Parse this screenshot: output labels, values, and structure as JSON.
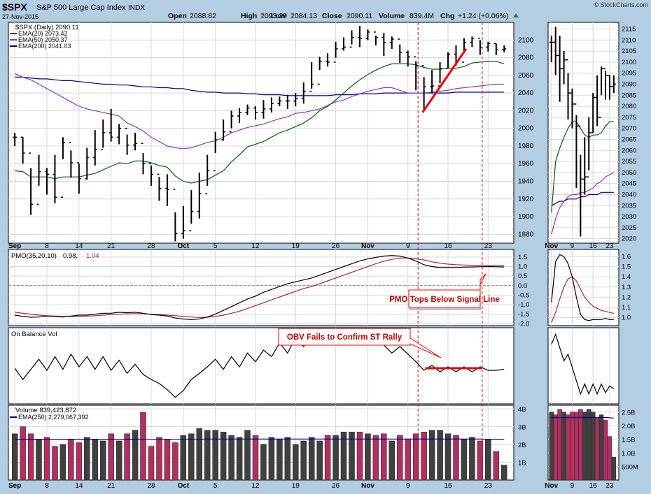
{
  "header": {
    "symbol": "$SPX",
    "name": "S&P 500 Large Cap Index",
    "exchange": "INDX",
    "date": "27-Nov-2015",
    "open_label": "Open",
    "open": "2088.82",
    "high_label": "High",
    "high": "2093.29",
    "low_label": "Low",
    "low": "2084.13",
    "close_label": "Close",
    "close": "2090.11",
    "volume_label": "Volume",
    "volume": "839.4M",
    "chg_label": "Chg",
    "chg": "+1.24 (+0.06%)",
    "watermark": "© StockCharts.com"
  },
  "legend": {
    "price": "$SPX (Daily) 2090.11",
    "ema20": "EMA(20) 2073.42",
    "ema50": "EMA(50) 2050.37",
    "ema200": "EMA(200) 2041.03",
    "pmo_name": "PMO(35,20,10)",
    "pmo_value": "0.98,",
    "pmo_signal": "1.04",
    "obv": "On Balance Vol",
    "volume": "Volume 839,423,872",
    "vol_ema": "EMA(250) 2,279,067,392"
  },
  "annotations": {
    "pmo": "PMO Tops Below Signal Line",
    "obv": "OBV Fails to Confirm ST Rally"
  },
  "colors": {
    "price": "#000000",
    "ema20": "#006400",
    "ema50": "#9932cc",
    "ema200": "#00008b",
    "pmo": "#000000",
    "pmo_signal": "#b22244",
    "vol_up": "#404040",
    "vol_down": "#b03060",
    "annotation_border": "#ff0000",
    "vertical_marker": "#e00000",
    "background": "#b3cde3"
  },
  "chart_data": [
    {
      "type": "ohlc",
      "panel": "price-daily",
      "x_tick_labels": [
        "Sep",
        "8",
        "14",
        "21",
        "28",
        "Oct",
        "5",
        "12",
        "19",
        "26",
        "Nov",
        "9",
        "16",
        "23"
      ],
      "y_ticks": [
        1880,
        1900,
        1920,
        1940,
        1960,
        1980,
        2000,
        2020,
        2040,
        2060,
        2080,
        2100
      ],
      "ylim": [
        1870,
        2120
      ],
      "close": [
        1990,
        1972,
        1914,
        1951,
        1948,
        1922,
        1984,
        1961,
        1943,
        1967,
        1976,
        1995,
        1990,
        2000,
        1981,
        1983,
        1960,
        1948,
        1932,
        1931,
        1881,
        1884,
        1906,
        1926,
        1952,
        1987,
        1996,
        2014,
        2018,
        2023,
        2018,
        2022,
        2028,
        2031,
        2031,
        2034,
        2042,
        2050,
        2076,
        2075,
        2090,
        2092,
        2103,
        2102,
        2109,
        2103,
        2097,
        2101,
        2086,
        2081,
        2071,
        2047,
        2048,
        2068,
        2084,
        2075,
        2097,
        2102,
        2092,
        2096,
        2089,
        2090
      ],
      "high": [
        1995,
        1990,
        1955,
        1970,
        1955,
        1970,
        1990,
        1975,
        1960,
        1978,
        1998,
        2010,
        2022,
        2005,
        1993,
        1995,
        1972,
        1958,
        1945,
        1948,
        1905,
        1912,
        1930,
        1950,
        1970,
        1996,
        2010,
        2020,
        2023,
        2027,
        2025,
        2032,
        2035,
        2036,
        2038,
        2040,
        2052,
        2075,
        2081,
        2085,
        2098,
        2103,
        2111,
        2116,
        2112,
        2105,
        2108,
        2104,
        2095,
        2088,
        2076,
        2058,
        2066,
        2075,
        2086,
        2094,
        2102,
        2104,
        2100,
        2098,
        2096,
        2094
      ],
      "low": [
        1980,
        1960,
        1902,
        1935,
        1925,
        1915,
        1965,
        1944,
        1926,
        1942,
        1958,
        1978,
        1985,
        1982,
        1970,
        1975,
        1948,
        1935,
        1918,
        1912,
        1872,
        1875,
        1892,
        1898,
        1935,
        1972,
        1986,
        2000,
        2006,
        2015,
        2010,
        2011,
        2018,
        2025,
        2022,
        2025,
        2028,
        2045,
        2066,
        2070,
        2080,
        2088,
        2095,
        2092,
        2100,
        2094,
        2082,
        2090,
        2074,
        2070,
        2043,
        2021,
        2040,
        2051,
        2068,
        2071,
        2085,
        2092,
        2083,
        2087,
        2083,
        2086
      ],
      "ema20": [
        1952,
        1951,
        1945,
        1945,
        1945,
        1943,
        1945,
        1945,
        1945,
        1947,
        1949,
        1953,
        1957,
        1961,
        1960,
        1963,
        1963,
        1961,
        1958,
        1956,
        1946,
        1940,
        1938,
        1940,
        1942,
        1947,
        1952,
        1962,
        1970,
        1979,
        1982,
        1985,
        1990,
        1995,
        1998,
        2002,
        2006,
        2012,
        2020,
        2025,
        2032,
        2040,
        2048,
        2055,
        2061,
        2066,
        2070,
        2073,
        2073,
        2073,
        2072,
        2069,
        2067,
        2067,
        2068,
        2068,
        2070,
        2074,
        2075,
        2076,
        2076,
        2073
      ],
      "ema50": [
        2062,
        2058,
        2055,
        2050,
        2045,
        2040,
        2035,
        2030,
        2025,
        2022,
        2020,
        2018,
        2016,
        2014,
        2006,
        2002,
        1997,
        1990,
        1985,
        1980,
        1978,
        1977,
        1978,
        1981,
        1984,
        1986,
        1990,
        1995,
        1998,
        2001,
        2003,
        2005,
        2008,
        2011,
        2013,
        2017,
        2018,
        2020,
        2022,
        2026,
        2030,
        2032,
        2036,
        2039,
        2042,
        2044,
        2046,
        2046,
        2043,
        2040,
        2040,
        2040,
        2041,
        2042,
        2043,
        2045,
        2046,
        2047,
        2048,
        2049,
        2050,
        2050
      ],
      "ema200": [
        2058,
        2058,
        2057,
        2056,
        2056,
        2055,
        2054,
        2054,
        2053,
        2052,
        2051,
        2050,
        2050,
        2049,
        2049,
        2048,
        2047,
        2047,
        2046,
        2046,
        2045,
        2045,
        2043,
        2042,
        2041,
        2041,
        2040,
        2040,
        2040,
        2039,
        2039,
        2038,
        2038,
        2038,
        2037,
        2037,
        2037,
        2037,
        2037,
        2037,
        2038,
        2038,
        2038,
        2039,
        2039,
        2039,
        2040,
        2040,
        2040,
        2040,
        2040,
        2040,
        2040,
        2040,
        2040,
        2041,
        2041,
        2041,
        2041,
        2041,
        2041,
        2041
      ]
    },
    {
      "type": "ohlc",
      "panel": "price-inset-nov",
      "x_tick_labels": [
        "Nov",
        "9",
        "16",
        "23"
      ],
      "y_ticks": [
        2020,
        2025,
        2030,
        2035,
        2040,
        2045,
        2050,
        2055,
        2060,
        2065,
        2070,
        2075,
        2080,
        2085,
        2090,
        2095,
        2100,
        2105,
        2110,
        2115
      ],
      "ylim": [
        2018,
        2118
      ],
      "close": [
        2109,
        2103,
        2097,
        2101,
        2086,
        2081,
        2071,
        2047,
        2048,
        2068,
        2084,
        2075,
        2097,
        2094,
        2089,
        2090
      ],
      "high": [
        2112,
        2116,
        2112,
        2105,
        2095,
        2088,
        2076,
        2058,
        2066,
        2075,
        2086,
        2094,
        2098,
        2096,
        2094,
        2094
      ],
      "low": [
        2100,
        2094,
        2082,
        2090,
        2074,
        2070,
        2043,
        2021,
        2040,
        2051,
        2068,
        2071,
        2085,
        2083,
        2083,
        2086
      ],
      "ema20": [
        2032,
        2055,
        2061,
        2066,
        2070,
        2073,
        2073,
        2070,
        2067,
        2066,
        2067,
        2067,
        2068,
        2071,
        2073,
        2073
      ],
      "ema50": [
        2022,
        2029,
        2034,
        2037,
        2039,
        2040,
        2040,
        2041,
        2041,
        2042,
        2043,
        2045,
        2046,
        2048,
        2049,
        2050
      ],
      "ema200": [
        2035,
        2036,
        2037,
        2037,
        2038,
        2038,
        2038,
        2039,
        2039,
        2040,
        2040,
        2040,
        2041,
        2041,
        2041,
        2041
      ]
    },
    {
      "type": "line",
      "panel": "pmo",
      "y_ticks": [
        -2.0,
        -1.5,
        -1.0,
        -0.5,
        0.0,
        0.5,
        1.0,
        1.5
      ],
      "ylim": [
        -2.1,
        1.9
      ],
      "series": [
        {
          "name": "PMO(35,20,10)",
          "values": [
            -1.55,
            -1.62,
            -1.66,
            -1.65,
            -1.6,
            -1.62,
            -1.65,
            -1.6,
            -1.55,
            -1.55,
            -1.5,
            -1.45,
            -1.45,
            -1.4,
            -1.42,
            -1.4,
            -1.45,
            -1.52,
            -1.55,
            -1.6,
            -1.7,
            -1.76,
            -1.78,
            -1.75,
            -1.65,
            -1.5,
            -1.3,
            -1.1,
            -0.9,
            -0.7,
            -0.55,
            -0.35,
            -0.2,
            -0.05,
            0.1,
            0.2,
            0.3,
            0.4,
            0.55,
            0.7,
            0.85,
            1.0,
            1.15,
            1.3,
            1.4,
            1.48,
            1.55,
            1.58,
            1.55,
            1.45,
            1.3,
            1.1,
            1.0,
            0.95,
            0.95,
            0.95,
            0.97,
            0.98,
            0.99,
            1.0,
            0.99,
            0.98
          ]
        },
        {
          "name": "Signal",
          "values": [
            -1.4,
            -1.45,
            -1.5,
            -1.55,
            -1.58,
            -1.6,
            -1.62,
            -1.62,
            -1.62,
            -1.6,
            -1.58,
            -1.55,
            -1.52,
            -1.5,
            -1.48,
            -1.47,
            -1.48,
            -1.5,
            -1.52,
            -1.55,
            -1.58,
            -1.62,
            -1.65,
            -1.67,
            -1.66,
            -1.62,
            -1.55,
            -1.45,
            -1.35,
            -1.2,
            -1.05,
            -0.9,
            -0.75,
            -0.6,
            -0.45,
            -0.3,
            -0.15,
            -0.05,
            0.1,
            0.25,
            0.4,
            0.55,
            0.7,
            0.85,
            1.0,
            1.15,
            1.28,
            1.38,
            1.45,
            1.45,
            1.42,
            1.35,
            1.25,
            1.18,
            1.13,
            1.1,
            1.08,
            1.07,
            1.06,
            1.05,
            1.04,
            1.04
          ]
        }
      ]
    },
    {
      "type": "line",
      "panel": "pmo-inset",
      "y_ticks": [
        1.0,
        1.1,
        1.2,
        1.3,
        1.4,
        1.5,
        1.6
      ],
      "ylim": [
        0.92,
        1.67
      ],
      "series": [
        {
          "name": "PMO(35,20,10)",
          "values": [
            1.15,
            1.55,
            1.62,
            1.6,
            1.53,
            1.4,
            1.2,
            1.03,
            0.98,
            0.97,
            0.98,
            0.98,
            0.98,
            0.99,
            0.98,
            0.98
          ]
        },
        {
          "name": "Signal",
          "values": [
            0.95,
            1.05,
            1.18,
            1.3,
            1.38,
            1.4,
            1.36,
            1.28,
            1.2,
            1.15,
            1.11,
            1.09,
            1.07,
            1.06,
            1.05,
            1.04
          ]
        }
      ]
    },
    {
      "type": "line",
      "panel": "obv",
      "series": [
        {
          "name": "On Balance Vol",
          "values": [
            0.32,
            0.1,
            0.3,
            0.5,
            0.28,
            0.55,
            0.3,
            0.6,
            0.35,
            0.55,
            0.3,
            0.55,
            0.28,
            0.48,
            0.22,
            0.4,
            0.2,
            0.1,
            0.02,
            -0.1,
            -0.25,
            -0.12,
            0.1,
            0.22,
            0.35,
            0.5,
            0.3,
            0.55,
            0.35,
            0.62,
            0.45,
            0.68,
            0.55,
            0.82,
            0.62,
            0.92,
            0.75,
            0.98,
            0.8,
            1.0,
            0.82,
            0.98,
            0.84,
            1.0,
            0.8,
            0.98,
            0.78,
            0.62,
            0.75,
            0.6,
            0.45,
            0.28,
            0.38,
            0.25,
            0.35,
            0.25,
            0.35,
            0.25,
            0.35,
            0.28,
            0.28,
            0.3
          ]
        }
      ]
    },
    {
      "type": "line",
      "panel": "obv-inset",
      "series": [
        {
          "name": "On Balance Vol",
          "values": [
            0.85,
            1.0,
            0.8,
            0.6,
            0.7,
            0.5,
            0.3,
            0.1,
            0.25,
            0.1,
            0.25,
            0.1,
            0.25,
            0.12,
            0.22,
            0.18
          ]
        }
      ]
    },
    {
      "type": "bar",
      "panel": "volume",
      "y_ticks": [
        "1B",
        "2B",
        "3B",
        "4B"
      ],
      "ylim": [
        0,
        4.2
      ],
      "values": [
        2.6,
        3.0,
        2.6,
        2.3,
        2.4,
        1.9,
        2.0,
        2.3,
        2.1,
        2.4,
        2.3,
        2.2,
        2.6,
        2.2,
        2.6,
        2.8,
        3.8,
        1.9,
        2.4,
        2.3,
        2.1,
        2.5,
        2.6,
        2.9,
        2.8,
        2.8,
        2.7,
        2.5,
        2.4,
        2.8,
        2.5,
        2.0,
        2.4,
        2.3,
        2.4,
        2.0,
        2.2,
        2.4,
        2.2,
        2.5,
        2.5,
        2.7,
        2.7,
        2.7,
        2.6,
        2.5,
        2.6,
        2.2,
        2.5,
        2.3,
        2.6,
        2.7,
        2.8,
        2.8,
        2.6,
        2.5,
        2.3,
        2.4,
        2.2,
        2.3,
        1.6,
        0.84
      ],
      "ema250": [
        2.28,
        2.28,
        2.28,
        2.28,
        2.28,
        2.28,
        2.28,
        2.28,
        2.28,
        2.28,
        2.28,
        2.28,
        2.28,
        2.28,
        2.28,
        2.28,
        2.29,
        2.29,
        2.29,
        2.29,
        2.29,
        2.29,
        2.29,
        2.29,
        2.3,
        2.3,
        2.3,
        2.3,
        2.3,
        2.3,
        2.3,
        2.3,
        2.3,
        2.3,
        2.3,
        2.3,
        2.3,
        2.3,
        2.3,
        2.3,
        2.3,
        2.3,
        2.3,
        2.3,
        2.3,
        2.3,
        2.3,
        2.3,
        2.3,
        2.3,
        2.3,
        2.3,
        2.3,
        2.3,
        2.3,
        2.3,
        2.3,
        2.3,
        2.3,
        2.29,
        2.28,
        2.28
      ]
    },
    {
      "type": "bar",
      "panel": "volume-inset",
      "y_ticks": [
        "500M",
        "1.0B",
        "1.5B",
        "2.0B",
        "2.5B"
      ],
      "ylim": [
        0,
        2.75
      ],
      "values": [
        2.5,
        2.4,
        2.6,
        2.5,
        2.4,
        2.5,
        2.5,
        2.6,
        2.5,
        2.6,
        2.5,
        2.3,
        2.4,
        2.2,
        1.6,
        0.84
      ],
      "ema250": [
        2.3,
        2.3,
        2.3,
        2.3,
        2.3,
        2.3,
        2.3,
        2.3,
        2.3,
        2.3,
        2.3,
        2.3,
        2.3,
        2.3,
        2.29,
        2.28
      ]
    }
  ]
}
